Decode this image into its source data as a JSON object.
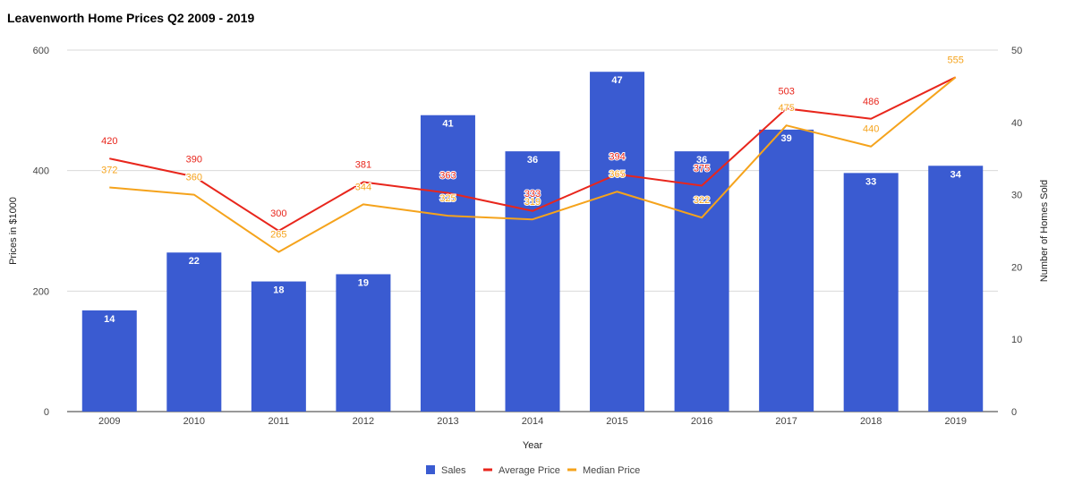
{
  "chart_data": {
    "type": "bar",
    "title": "Leavenworth Home Prices Q2 2009 - 2019",
    "xlabel": "Year",
    "ylabel": "Prices in $1000",
    "y2label": "Number of Homes Sold",
    "categories": [
      "2009",
      "2010",
      "2011",
      "2012",
      "2013",
      "2014",
      "2015",
      "2016",
      "2017",
      "2018",
      "2019"
    ],
    "ylim": [
      0,
      600
    ],
    "y_ticks": [
      0,
      200,
      400,
      600
    ],
    "y2lim": [
      0,
      50
    ],
    "y2_ticks": [
      0,
      10,
      20,
      30,
      40,
      50
    ],
    "grid": true,
    "legend_position": "bottom",
    "series": [
      {
        "name": "Sales",
        "type": "bar",
        "axis": "right",
        "color": "#3a5bd1",
        "values": [
          14,
          22,
          18,
          19,
          41,
          36,
          47,
          36,
          39,
          33,
          34
        ]
      },
      {
        "name": "Average Price",
        "type": "line",
        "axis": "left",
        "color": "#e8261c",
        "values": [
          420,
          390,
          300,
          381,
          363,
          333,
          394,
          375,
          503,
          486,
          555
        ]
      },
      {
        "name": "Median Price",
        "type": "line",
        "axis": "left",
        "color": "#f5a31c",
        "values": [
          372,
          360,
          265,
          344,
          325,
          319,
          365,
          322,
          475,
          440,
          555
        ]
      }
    ]
  }
}
